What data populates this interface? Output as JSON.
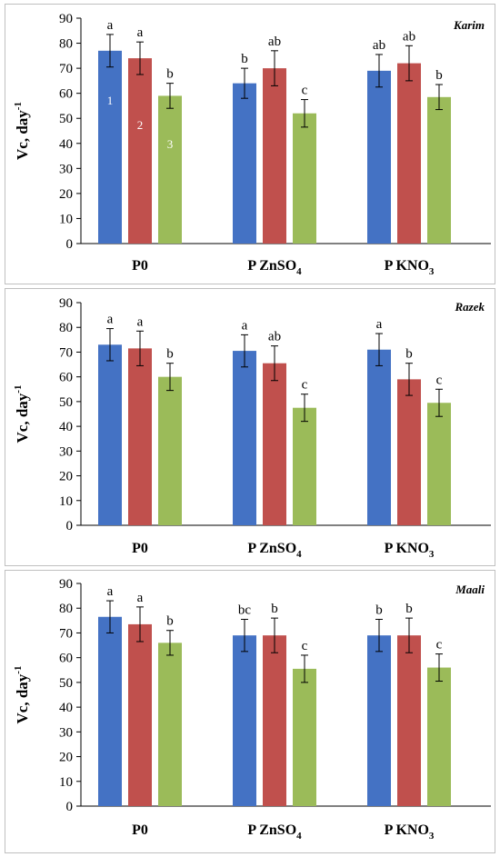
{
  "colors": {
    "series1": "#4472C4",
    "series2": "#C0504D",
    "series3": "#9BBB59",
    "frame": "#BFBFBF",
    "axis": "#000000"
  },
  "chart_data": [
    {
      "type": "bar",
      "title": "Karim",
      "ylabel": "Vc, day",
      "ylabel_sup": "-1",
      "ylim": [
        0,
        90
      ],
      "yticks": [
        "0",
        "10",
        "20",
        "30",
        "40",
        "50",
        "60",
        "70",
        "80",
        "90"
      ],
      "categories": [
        {
          "base": "P0",
          "sub": "",
          "tail": ""
        },
        {
          "base": "P ZnSO",
          "sub": "4",
          "tail": ""
        },
        {
          "base": "P KNO",
          "sub": "3",
          "tail": ""
        }
      ],
      "series": [
        {
          "values": [
            77,
            64,
            69
          ],
          "err": [
            6.5,
            6,
            6.5
          ],
          "marks": [
            "a",
            "b",
            "ab"
          ],
          "bar_label": "1"
        },
        {
          "values": [
            74,
            70,
            72
          ],
          "err": [
            6.5,
            7,
            7
          ],
          "marks": [
            "a",
            "ab",
            "ab"
          ],
          "bar_label": "2"
        },
        {
          "values": [
            59,
            52,
            58.5
          ],
          "err": [
            5,
            5.5,
            5
          ],
          "marks": [
            "b",
            "c",
            "b"
          ],
          "bar_label": "3"
        }
      ]
    },
    {
      "type": "bar",
      "title": "Razek",
      "ylabel": "Vc, day",
      "ylabel_sup": "-1",
      "ylim": [
        0,
        90
      ],
      "yticks": [
        "0",
        "10",
        "20",
        "30",
        "40",
        "50",
        "60",
        "70",
        "80",
        "90"
      ],
      "categories": [
        {
          "base": "P0",
          "sub": "",
          "tail": ""
        },
        {
          "base": "P ZnSO",
          "sub": "4",
          "tail": ""
        },
        {
          "base": "P KNO",
          "sub": "3",
          "tail": ""
        }
      ],
      "series": [
        {
          "values": [
            73,
            70.5,
            71
          ],
          "err": [
            6.5,
            6.5,
            6.5
          ],
          "marks": [
            "a",
            "a",
            "a"
          ]
        },
        {
          "values": [
            71.5,
            65.5,
            59
          ],
          "err": [
            7,
            7,
            6.5
          ],
          "marks": [
            "a",
            "ab",
            "b"
          ]
        },
        {
          "values": [
            60,
            47.5,
            49.5
          ],
          "err": [
            5.5,
            5.5,
            5.5
          ],
          "marks": [
            "b",
            "c",
            "c"
          ]
        }
      ]
    },
    {
      "type": "bar",
      "title": "Maali",
      "ylabel": "Vc, day",
      "ylabel_sup": "-1",
      "ylim": [
        0,
        90
      ],
      "yticks": [
        "0",
        "10",
        "20",
        "30",
        "40",
        "50",
        "60",
        "70",
        "80",
        "90"
      ],
      "categories": [
        {
          "base": "P0",
          "sub": "",
          "tail": ""
        },
        {
          "base": "P ZnSO",
          "sub": "4",
          "tail": ""
        },
        {
          "base": "P KNO",
          "sub": "3",
          "tail": ""
        }
      ],
      "series": [
        {
          "values": [
            76.5,
            69,
            69
          ],
          "err": [
            6.5,
            6.5,
            6.5
          ],
          "marks": [
            "a",
            "bc",
            "b"
          ]
        },
        {
          "values": [
            73.5,
            69,
            69
          ],
          "err": [
            7,
            7,
            7
          ],
          "marks": [
            "a",
            "b",
            "b"
          ]
        },
        {
          "values": [
            66,
            55.5,
            56
          ],
          "err": [
            5,
            5.5,
            5.5
          ],
          "marks": [
            "b",
            "c",
            "c"
          ]
        }
      ]
    }
  ]
}
